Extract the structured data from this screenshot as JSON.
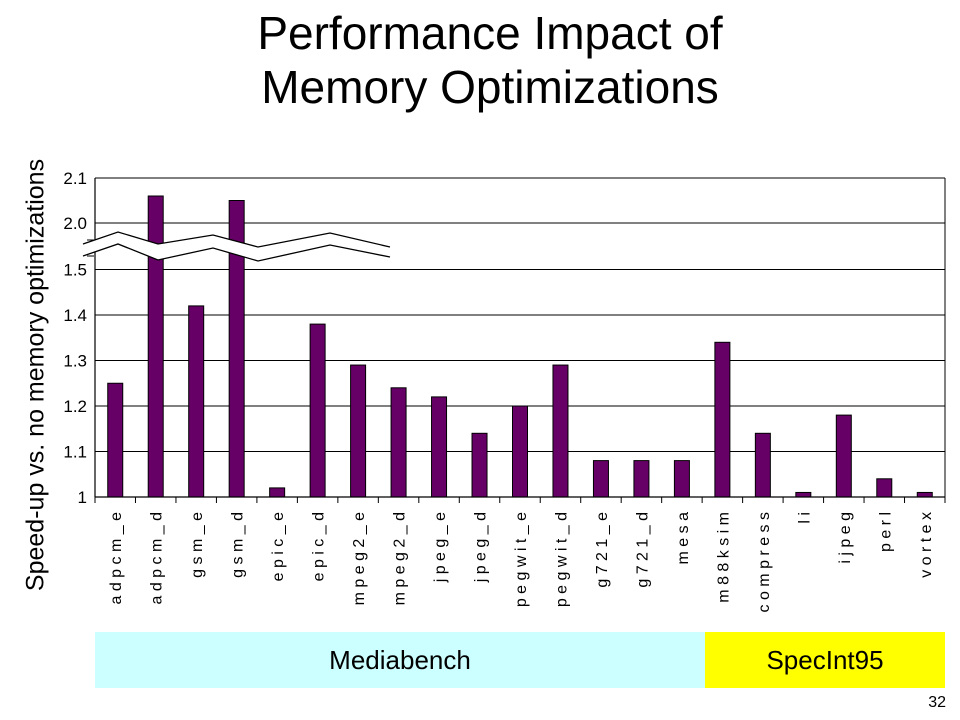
{
  "chart_data": {
    "type": "bar",
    "title": "Performance Impact of Memory Optimizations",
    "xlabel": "",
    "ylabel": "Speed-up vs. no memory optimizations",
    "categories": [
      "adpcm_e",
      "adpcm_d",
      "gsm_e",
      "gsm_d",
      "epic_e",
      "epic_d",
      "mpeg2_e",
      "mpeg2_d",
      "jpeg_e",
      "jpeg_d",
      "pegwit_e",
      "pegwit_d",
      "g721_e",
      "g721_d",
      "mesa",
      "m88ksim",
      "compress",
      "li",
      "ijpeg",
      "perl",
      "vortex"
    ],
    "values": [
      1.25,
      2.06,
      1.42,
      2.05,
      1.02,
      1.38,
      1.29,
      1.24,
      1.22,
      1.14,
      1.2,
      1.29,
      1.08,
      1.08,
      1.08,
      1.34,
      1.14,
      1.01,
      1.18,
      1.04,
      1.01
    ],
    "ytick_labels": [
      "1",
      "1.1",
      "1.2",
      "1.3",
      "1.4",
      "1.5",
      "2.0",
      "2.1"
    ],
    "ytick_values": [
      1.0,
      1.1,
      1.2,
      1.3,
      1.4,
      1.5,
      2.0,
      2.1
    ],
    "ylim": [
      1.0,
      2.1
    ],
    "axis_break": [
      1.5,
      2.0
    ],
    "bar_color": "#660066",
    "grid": true,
    "groups": [
      {
        "label": "Mediabench",
        "color": "#ccffff"
      },
      {
        "label": "SpecInt95",
        "color": "#ffff00"
      }
    ]
  },
  "page_number": "32"
}
